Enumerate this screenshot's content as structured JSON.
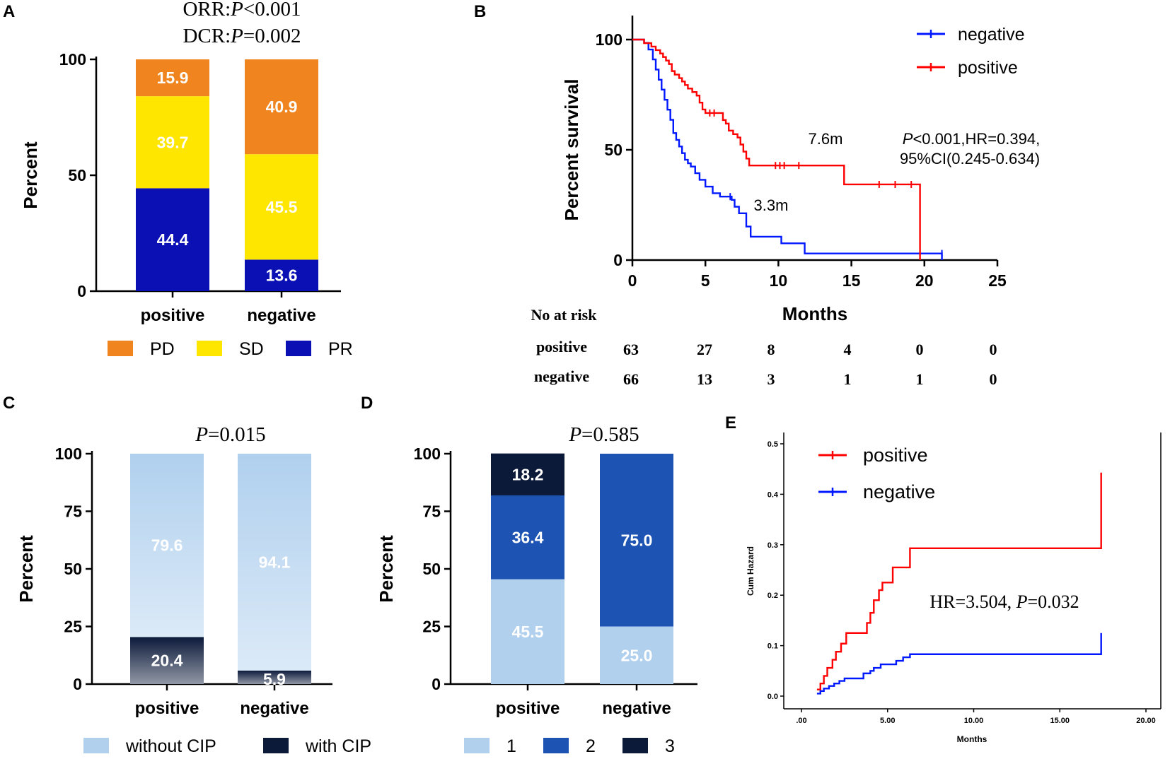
{
  "colors": {
    "PD": "#f0841e",
    "SD": "#ffe600",
    "PR": "#0a10b4",
    "without_cip": "#b0d0ee",
    "with_cip": "#0c1a3a",
    "grade1": "#b0d0ee",
    "grade2": "#1d54b4",
    "grade3": "#0c1a3a",
    "positive": "#ff0000",
    "negative": "#0018ff",
    "white": "#ffffff",
    "black": "#000000"
  },
  "chart_data": [
    {
      "panel": "A",
      "type": "bar",
      "stacked": true,
      "categories": [
        "positive",
        "negative"
      ],
      "series": [
        {
          "name": "PR",
          "values": [
            44.4,
            13.6
          ],
          "labels": [
            "44.4",
            "13.6"
          ]
        },
        {
          "name": "SD",
          "values": [
            39.7,
            45.5
          ],
          "labels": [
            "39.7",
            "45.5"
          ]
        },
        {
          "name": "PD",
          "values": [
            15.9,
            40.9
          ],
          "labels": [
            "15.9",
            "40.9"
          ]
        }
      ],
      "legend": [
        "PD",
        "SD",
        "PR"
      ],
      "ylabel": "Percent",
      "ylim": [
        0,
        100
      ],
      "yticks": [
        "0",
        "50",
        "100"
      ],
      "title_lines": [
        [
          "ORR:",
          "P",
          "<0.001"
        ],
        [
          "DCR:",
          "P",
          "=0.002"
        ]
      ]
    },
    {
      "panel": "B",
      "type": "line",
      "subtype": "kaplan-meier",
      "xlabel": "Months",
      "ylabel": "Percent survival",
      "xlim": [
        0,
        25
      ],
      "ylim": [
        0,
        100
      ],
      "xticks": [
        "0",
        "5",
        "10",
        "15",
        "20",
        "25"
      ],
      "yticks": [
        "0",
        "50",
        "100"
      ],
      "series": [
        {
          "name": "negative",
          "steps": [
            [
              0,
              100
            ],
            [
              0.5,
              100
            ],
            [
              0.8,
              98.5
            ],
            [
              1.1,
              95.5
            ],
            [
              1.4,
              91
            ],
            [
              1.6,
              86.4
            ],
            [
              1.8,
              81.8
            ],
            [
              2,
              77.3
            ],
            [
              2.2,
              72.7
            ],
            [
              2.4,
              68.2
            ],
            [
              2.6,
              63.6
            ],
            [
              2.8,
              57.6
            ],
            [
              3,
              54.5
            ],
            [
              3.2,
              51.5
            ],
            [
              3.4,
              48.5
            ],
            [
              3.6,
              45.5
            ],
            [
              3.8,
              43.9
            ],
            [
              4,
              42.4
            ],
            [
              4.3,
              39.4
            ],
            [
              4.6,
              36.4
            ],
            [
              5,
              33.3
            ],
            [
              5.5,
              30.3
            ],
            [
              6,
              28.8
            ],
            [
              6.8,
              27.3
            ],
            [
              7,
              24.2
            ],
            [
              7.3,
              21.2
            ],
            [
              7.8,
              15.2
            ],
            [
              8.1,
              10.6
            ],
            [
              10.2,
              7.6
            ],
            [
              11.8,
              3
            ],
            [
              21.2,
              3
            ],
            [
              21.2,
              0
            ]
          ],
          "censored": [
            [
              6.7,
              28.8
            ],
            [
              21.2,
              3
            ]
          ]
        },
        {
          "name": "positive",
          "steps": [
            [
              0,
              100
            ],
            [
              0.8,
              98.4
            ],
            [
              1.3,
              96.8
            ],
            [
              1.6,
              95.2
            ],
            [
              1.9,
              93.7
            ],
            [
              2.1,
              92.1
            ],
            [
              2.3,
              90.5
            ],
            [
              2.5,
              88.9
            ],
            [
              2.7,
              85.7
            ],
            [
              2.9,
              84.1
            ],
            [
              3.2,
              82.5
            ],
            [
              3.4,
              81
            ],
            [
              3.6,
              79.4
            ],
            [
              3.8,
              77.8
            ],
            [
              4.1,
              76.2
            ],
            [
              4.4,
              74.6
            ],
            [
              4.6,
              71.4
            ],
            [
              4.8,
              68.3
            ],
            [
              5,
              66.7
            ],
            [
              6.2,
              63.5
            ],
            [
              6.4,
              61.9
            ],
            [
              6.6,
              58.7
            ],
            [
              6.9,
              57.1
            ],
            [
              7.2,
              55.6
            ],
            [
              7.4,
              52.4
            ],
            [
              7.6,
              49.2
            ],
            [
              7.8,
              46
            ],
            [
              8,
              42.9
            ],
            [
              14.5,
              34.3
            ],
            [
              19.7,
              34.3
            ],
            [
              19.7,
              0
            ]
          ],
          "censored": [
            [
              5.3,
              66.7
            ],
            [
              5.6,
              66.7
            ],
            [
              9.8,
              42.9
            ],
            [
              10.1,
              42.9
            ],
            [
              10.4,
              42.9
            ],
            [
              11.4,
              42.9
            ],
            [
              16.9,
              34.3
            ],
            [
              18,
              34.3
            ],
            [
              19.1,
              34.3
            ]
          ]
        }
      ],
      "annotations": [
        "7.6m",
        "3.3m",
        "P<0.001,HR=0.394,",
        "95%CI(0.245-0.634)"
      ],
      "legend": [
        "negative",
        "positive"
      ],
      "risk_table": {
        "title": "No at risk",
        "rows": [
          {
            "label": "positive",
            "values": [
              "63",
              "27",
              "8",
              "4",
              "0",
              "0"
            ]
          },
          {
            "label": "negative",
            "values": [
              "66",
              "13",
              "3",
              "1",
              "1",
              "0"
            ]
          }
        ]
      }
    },
    {
      "panel": "C",
      "type": "bar",
      "stacked": true,
      "categories": [
        "positive",
        "negative"
      ],
      "series": [
        {
          "name": "with CIP",
          "values": [
            20.4,
            5.9
          ],
          "labels": [
            "20.4",
            "5.9"
          ]
        },
        {
          "name": "without CIP",
          "values": [
            79.6,
            94.1
          ],
          "labels": [
            "79.6",
            "94.1"
          ]
        }
      ],
      "legend": [
        "without CIP",
        "with CIP"
      ],
      "ylabel": "Percent",
      "ylim": [
        0,
        100
      ],
      "yticks": [
        "0",
        "25",
        "50",
        "75",
        "100"
      ],
      "title_lines": [
        [
          "",
          "P",
          "=0.015"
        ]
      ]
    },
    {
      "panel": "D",
      "type": "bar",
      "stacked": true,
      "categories": [
        "positive",
        "negative"
      ],
      "series": [
        {
          "name": "1",
          "values": [
            45.5,
            25.0
          ],
          "labels": [
            "45.5",
            "25.0"
          ]
        },
        {
          "name": "2",
          "values": [
            36.4,
            75.0
          ],
          "labels": [
            "36.4",
            "75.0"
          ]
        },
        {
          "name": "3",
          "values": [
            18.2,
            0
          ],
          "labels": [
            "18.2",
            ""
          ]
        }
      ],
      "legend": [
        "1",
        "2",
        "3"
      ],
      "ylabel": "Percent",
      "ylim": [
        0,
        100
      ],
      "yticks": [
        "0",
        "25",
        "50",
        "75",
        "100"
      ],
      "title_lines": [
        [
          "",
          "P",
          "=0.585"
        ]
      ]
    },
    {
      "panel": "E",
      "type": "line",
      "subtype": "cumulative-hazard",
      "xlabel": "Months",
      "ylabel": "Cum Hazard",
      "xlim": [
        0,
        20
      ],
      "ylim": [
        -0.01,
        0.5
      ],
      "xticks": [
        ".00",
        "5.00",
        "10.00",
        "15.00",
        "20.00"
      ],
      "xtick_values": [
        0,
        5,
        10,
        15,
        20
      ],
      "yticks": [
        "0.0",
        "0.1",
        "0.2",
        "0.3",
        "0.4",
        "0.5"
      ],
      "ytick_values": [
        0,
        0.1,
        0.2,
        0.3,
        0.4,
        0.5
      ],
      "series": [
        {
          "name": "positive",
          "steps": [
            [
              0.9,
              0.013
            ],
            [
              1.1,
              0.025
            ],
            [
              1.3,
              0.04
            ],
            [
              1.5,
              0.056
            ],
            [
              1.8,
              0.072
            ],
            [
              2,
              0.088
            ],
            [
              2.3,
              0.104
            ],
            [
              2.6,
              0.125
            ],
            [
              3.8,
              0.145
            ],
            [
              4,
              0.165
            ],
            [
              4.2,
              0.19
            ],
            [
              4.5,
              0.21
            ],
            [
              4.7,
              0.225
            ],
            [
              5.3,
              0.255
            ],
            [
              6.3,
              0.293
            ],
            [
              17.4,
              0.293
            ],
            [
              17.4,
              0.443
            ]
          ]
        },
        {
          "name": "negative",
          "steps": [
            [
              0.9,
              0.005
            ],
            [
              1.1,
              0.01
            ],
            [
              1.3,
              0.015
            ],
            [
              1.6,
              0.02
            ],
            [
              1.9,
              0.025
            ],
            [
              2.2,
              0.03
            ],
            [
              2.5,
              0.035
            ],
            [
              3.6,
              0.045
            ],
            [
              4,
              0.05
            ],
            [
              4.2,
              0.056
            ],
            [
              4.6,
              0.063
            ],
            [
              5.5,
              0.07
            ],
            [
              5.9,
              0.077
            ],
            [
              6.3,
              0.083
            ],
            [
              17.4,
              0.083
            ],
            [
              17.4,
              0.125
            ]
          ]
        }
      ],
      "legend": [
        "positive",
        "negative"
      ],
      "annotation": [
        "HR=3.504,",
        "P",
        "=0.032"
      ]
    }
  ],
  "panel_labels": [
    "A",
    "B",
    "C",
    "D",
    "E"
  ]
}
